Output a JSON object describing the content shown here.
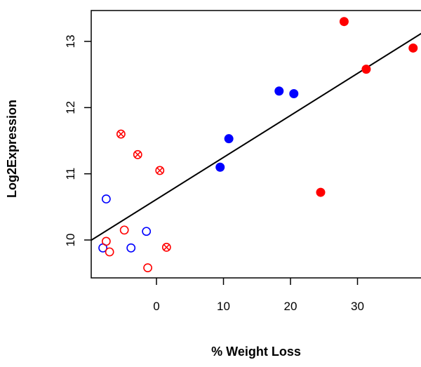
{
  "chart_data": {
    "type": "scatter",
    "title": "",
    "xlabel": "% Weight Loss",
    "ylabel": "Log2Expression",
    "xlim": [
      -10,
      40
    ],
    "ylim": [
      9.4,
      13.4
    ],
    "x_ticks": [
      0,
      10,
      20,
      30
    ],
    "y_ticks": [
      10,
      11,
      12,
      13
    ],
    "grid": false,
    "legend": "none",
    "colors": {
      "blue": "#0000ff",
      "red": "#ff0000",
      "line": "#000000"
    },
    "trend_line": {
      "x": [
        -10,
        40
      ],
      "y": [
        9.98,
        13.15
      ]
    },
    "series": [
      {
        "color": "blue",
        "marker": "filled-circle",
        "points": [
          [
            9.5,
            11.1
          ],
          [
            10.8,
            11.53
          ],
          [
            18.3,
            12.25
          ],
          [
            20.5,
            12.21
          ]
        ]
      },
      {
        "color": "red",
        "marker": "filled-circle",
        "points": [
          [
            24.5,
            10.72
          ],
          [
            28.0,
            13.3
          ],
          [
            31.3,
            12.58
          ],
          [
            38.3,
            12.9
          ]
        ]
      },
      {
        "color": "blue",
        "marker": "open-circle",
        "points": [
          [
            -7.5,
            10.62
          ],
          [
            -8.0,
            9.88
          ],
          [
            -3.8,
            9.88
          ],
          [
            -1.5,
            10.13
          ]
        ]
      },
      {
        "color": "red",
        "marker": "open-circle",
        "points": [
          [
            -7.5,
            9.98
          ],
          [
            -7.0,
            9.82
          ],
          [
            -4.8,
            10.15
          ],
          [
            -1.3,
            9.58
          ]
        ]
      },
      {
        "color": "red",
        "marker": "crossed-circle",
        "points": [
          [
            -5.3,
            11.6
          ],
          [
            -2.8,
            11.29
          ],
          [
            0.5,
            11.05
          ],
          [
            1.5,
            9.89
          ]
        ]
      }
    ]
  }
}
